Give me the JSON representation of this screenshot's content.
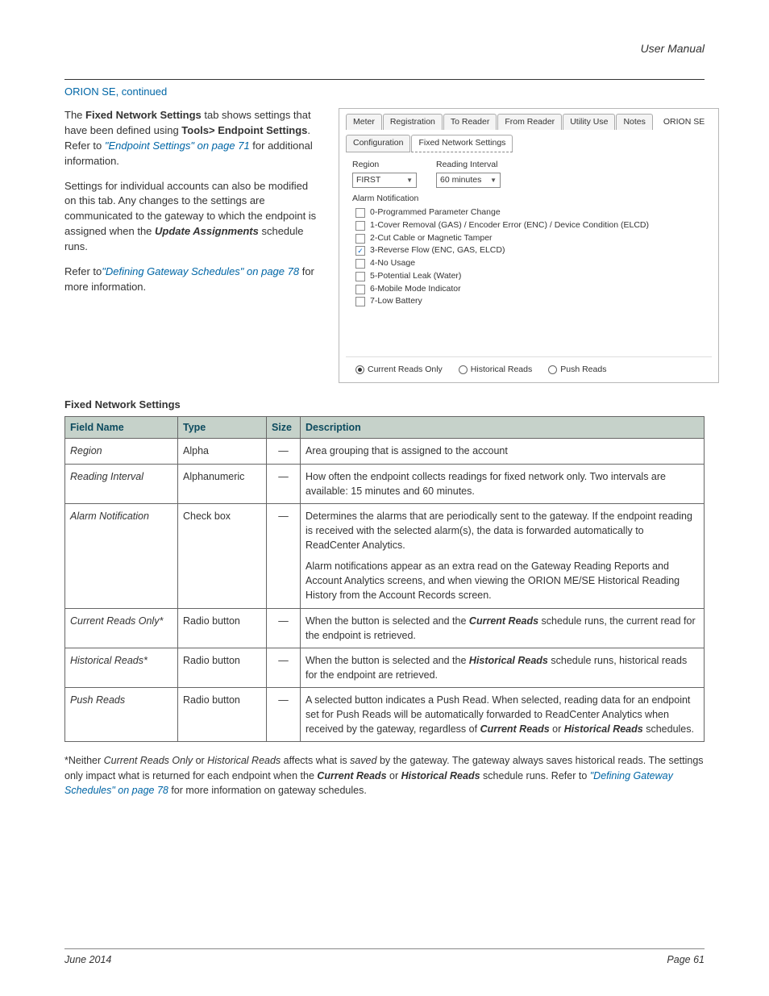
{
  "header": {
    "doc_title": "User Manual"
  },
  "section": {
    "title": "ORION SE, continued"
  },
  "body": {
    "p1_a": "The ",
    "p1_b": "Fixed Network Settings",
    "p1_c": " tab shows settings that have been defined using ",
    "p1_d": "Tools> Endpoint Settings",
    "p1_e": ". Refer to ",
    "p1_link1": "\"Endpoint Settings\" on page 71",
    "p1_f": " for additional information.",
    "p2_a": "Settings for individual accounts can also be modified on this tab. Any changes to the settings are communicated to the gateway to which the endpoint is assigned when the ",
    "p2_b": "Update Assignments",
    "p2_c": " schedule runs.",
    "p3_a": "Refer to",
    "p3_link": "\"Defining Gateway Schedules\" on page 78",
    "p3_b": " for more information."
  },
  "panel": {
    "tabs": {
      "meter": "Meter",
      "registration": "Registration",
      "to_reader": "To Reader",
      "from_reader": "From Reader",
      "utility_use": "Utility Use",
      "notes": "Notes",
      "orion_se": "ORION SE"
    },
    "subtabs": {
      "configuration": "Configuration",
      "fns": "Fixed Network Settings"
    },
    "region_label": "Region",
    "region_value": "FIRST",
    "interval_label": "Reading Interval",
    "interval_value": "60 minutes",
    "alarm_label": "Alarm Notification",
    "alarms": {
      "a0": "0-Programmed Parameter Change",
      "a1": "1-Cover Removal (GAS) / Encoder Error (ENC) / Device Condition (ELCD)",
      "a2": "2-Cut Cable or Magnetic Tamper",
      "a3": "3-Reverse Flow (ENC, GAS, ELCD)",
      "a4": "4-No Usage",
      "a5": "5-Potential Leak (Water)",
      "a6": "6-Mobile Mode Indicator",
      "a7": "7-Low Battery"
    },
    "radios": {
      "current": "Current Reads Only",
      "historical": "Historical Reads",
      "push": "Push Reads"
    }
  },
  "table": {
    "caption": "Fixed Network Settings",
    "headers": {
      "fn": "Field Name",
      "tp": "Type",
      "sz": "Size",
      "desc": "Description"
    },
    "rows": {
      "r0": {
        "fn": "Region",
        "tp": "Alpha",
        "sz": "—",
        "desc": "Area grouping that is assigned to the account"
      },
      "r1": {
        "fn": "Reading Interval",
        "tp": "Alphanumeric",
        "sz": "—",
        "desc": "How often the endpoint collects readings for fixed network only. Two intervals are available: 15 minutes and 60 minutes."
      },
      "r2": {
        "fn": "Alarm Notification",
        "tp": "Check box",
        "sz": "—",
        "d1": "Determines the alarms that are periodically sent to the gateway. If the endpoint reading is received with the selected alarm(s), the data is forwarded automatically to ReadCenter Analytics.",
        "d2": "Alarm notifications appear as an extra read on the Gateway Reading Reports and Account Analytics screens, and when viewing the ORION ME/SE Historical Reading History from the Account Records screen."
      },
      "r3": {
        "fn": "Current Reads Only*",
        "tp": "Radio button",
        "sz": "—",
        "da": "When the button is selected and the ",
        "db": "Current Reads",
        "dc": " schedule runs, the current read for the endpoint is retrieved."
      },
      "r4": {
        "fn": "Historical Reads*",
        "tp": "Radio button",
        "sz": "—",
        "da": "When the button is selected and the ",
        "db": "Historical Reads",
        "dc": " schedule runs, historical reads for the endpoint are retrieved."
      },
      "r5": {
        "fn": "Push Reads",
        "tp": "Radio button",
        "sz": "—",
        "da": "A selected button indicates a Push Read. When selected, reading data for an endpoint set for Push Reads will be automatically forwarded to ReadCenter Analytics when received by the gateway, regardless of ",
        "db": "Current Reads",
        "dc": " or ",
        "dd": "Historical Reads",
        "de": " schedules."
      }
    }
  },
  "footnote": {
    "a": "*Neither ",
    "b": "Current Reads Only",
    "c": " or ",
    "d": "Historical Reads",
    "e": " affects what is ",
    "f": "saved",
    "g": " by the gateway. The gateway always saves historical reads. The settings only impact what is returned for each endpoint when the ",
    "h": "Current Reads",
    "i": " or ",
    "j": "Historical Reads",
    "k": " schedule runs. Refer to ",
    "link": "\"Defining Gateway Schedules\" on page 78",
    "l": " for more information on gateway schedules."
  },
  "footer": {
    "left": "June 2014",
    "right": "Page 61"
  }
}
